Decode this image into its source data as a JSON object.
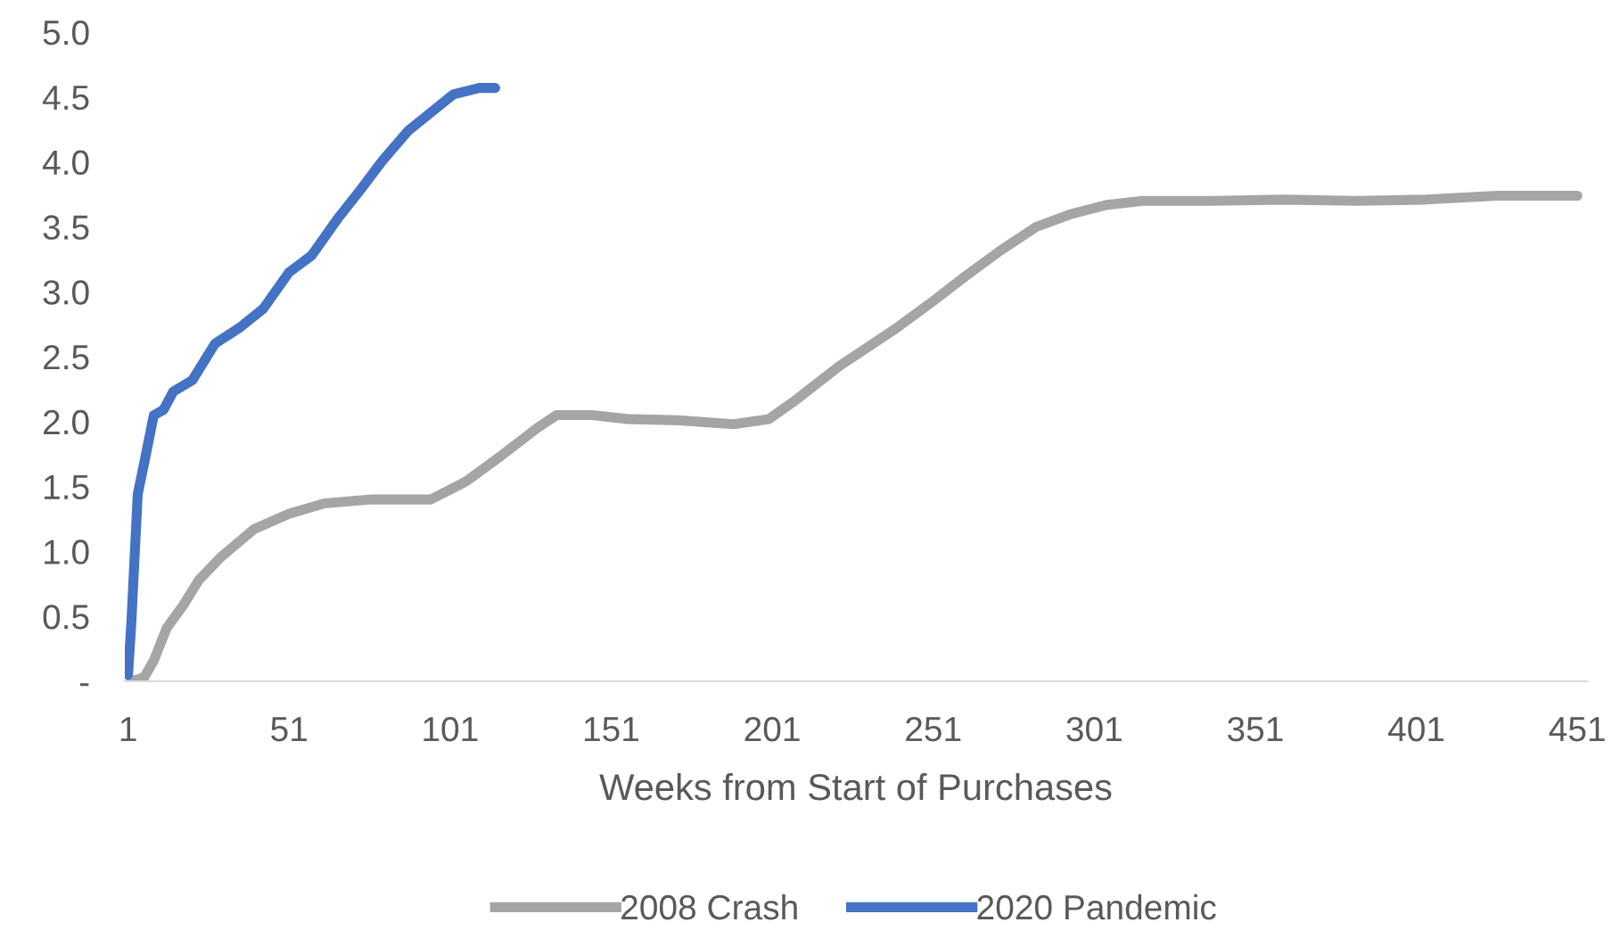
{
  "chart_data": {
    "type": "line",
    "xlabel": "Weeks from Start of Purchases",
    "xlim": [
      0,
      454
    ],
    "xticks": [
      1,
      51,
      101,
      151,
      201,
      251,
      301,
      351,
      401,
      451
    ],
    "ylim": [
      0,
      5.0
    ],
    "yticks": [
      {
        "value": 0,
        "label": "-"
      },
      {
        "value": 0.5,
        "label": "0.5"
      },
      {
        "value": 1.0,
        "label": "1.0"
      },
      {
        "value": 1.5,
        "label": "1.5"
      },
      {
        "value": 2.0,
        "label": "2.0"
      },
      {
        "value": 2.5,
        "label": "2.5"
      },
      {
        "value": 3.0,
        "label": "3.0"
      },
      {
        "value": 3.5,
        "label": "3.5"
      },
      {
        "value": 4.0,
        "label": "4.0"
      },
      {
        "value": 4.5,
        "label": "4.5"
      },
      {
        "value": 5.0,
        "label": "5.0"
      }
    ],
    "grid": false,
    "legend": "bottom",
    "line_style": "solid",
    "marker": "none",
    "series": [
      {
        "name": "2008 Crash",
        "color": "#a5a5a5",
        "x": [
          2,
          6,
          9,
          13,
          18,
          23,
          30,
          40,
          51,
          62,
          76,
          95,
          106,
          117,
          128,
          134,
          145,
          156,
          172,
          189,
          200,
          208,
          222,
          239,
          250,
          261,
          272,
          283,
          294,
          305,
          316,
          338,
          360,
          382,
          404,
          426,
          451
        ],
        "values": [
          0,
          0.03,
          0.16,
          0.41,
          0.58,
          0.78,
          0.96,
          1.17,
          1.29,
          1.37,
          1.4,
          1.4,
          1.54,
          1.74,
          1.95,
          2.05,
          2.05,
          2.02,
          2.01,
          1.98,
          2.02,
          2.16,
          2.43,
          2.71,
          2.91,
          3.12,
          3.32,
          3.5,
          3.6,
          3.67,
          3.7,
          3.7,
          3.71,
          3.7,
          3.71,
          3.74,
          3.74
        ]
      },
      {
        "name": "2020 Pandemic",
        "color": "#4472c4",
        "x": [
          1,
          2,
          4,
          6,
          9,
          12,
          15,
          21,
          28,
          36,
          43,
          51,
          58,
          66,
          73,
          80,
          88,
          95,
          102,
          110,
          115
        ],
        "values": [
          0.05,
          0.44,
          1.44,
          1.68,
          2.05,
          2.09,
          2.23,
          2.32,
          2.6,
          2.73,
          2.87,
          3.15,
          3.28,
          3.56,
          3.78,
          4.01,
          4.24,
          4.38,
          4.52,
          4.57,
          4.57
        ]
      }
    ]
  }
}
